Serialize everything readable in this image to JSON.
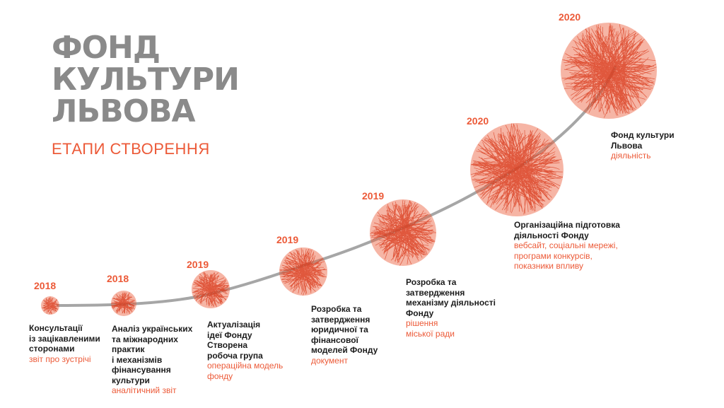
{
  "title_lines": [
    "ФОНД",
    "КУЛЬТУРИ",
    "ЛЬВОВА"
  ],
  "subtitle": "ЕТАПИ СТВОРЕННЯ",
  "colors": {
    "accent": "#ec5a38",
    "title": "#8a8a8a",
    "curve": "#a6a6a6",
    "text": "#1c1c1c"
  },
  "stages": [
    {
      "year": "2018",
      "title": "Консультації\nіз зацікавленими\nсторонами",
      "result": "звіт про зустрічі"
    },
    {
      "year": "2018",
      "title": "Аналіз українських\nта міжнародних\nпрактик\nі механізмів\nфінансування\nкультури",
      "result": "аналітичний звіт"
    },
    {
      "year": "2019",
      "title": "Актуалізація\nідеї Фонду\nСтворена\nробоча група",
      "result": "операційна модель\nфонду"
    },
    {
      "year": "2019",
      "title": "Розробка та\nзатвердження\nюридичної та\nфінансової\nмоделей Фонду",
      "result": "документ"
    },
    {
      "year": "2019",
      "title": "Розробка та\nзатвердження\nмеханізму діяльності\nФонду",
      "result": "рішення\nміської ради"
    },
    {
      "year": "2020",
      "title": "Організаційна підготовка\nдіяльності Фонду",
      "result": "вебсайт, соціальні мережі,\nпрограми конкурсів,\nпоказники впливу"
    },
    {
      "year": "2020",
      "title": "Фонд культури\nЛьвова",
      "result": "діяльність"
    }
  ]
}
